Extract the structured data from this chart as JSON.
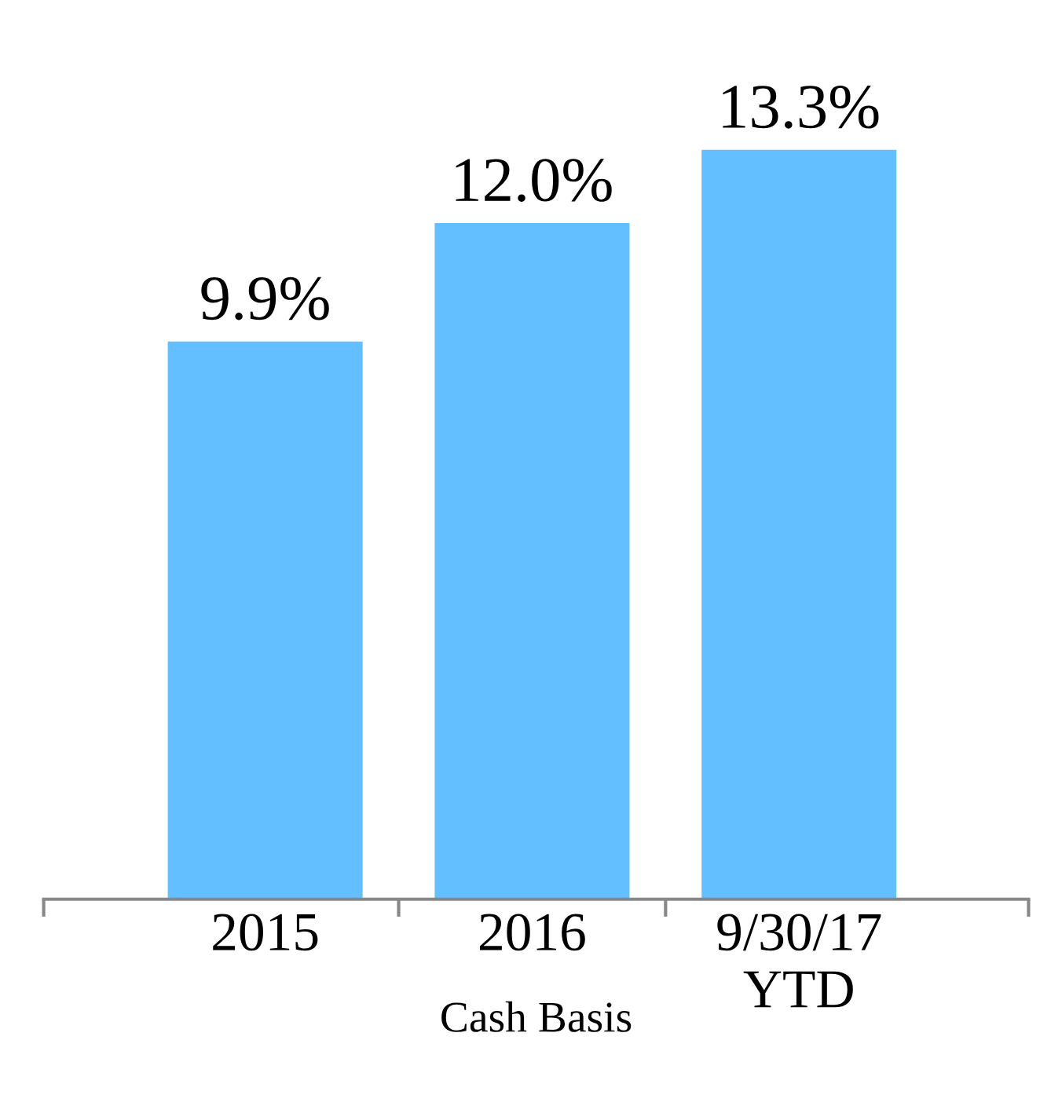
{
  "chart_data": {
    "type": "bar",
    "categories": [
      "2015",
      "2016",
      "9/30/17\nYTD"
    ],
    "values": [
      9.9,
      12.0,
      13.3
    ],
    "value_labels": [
      "9.9%",
      "12.0%",
      "13.3%"
    ],
    "color": "#63bfff",
    "xlabel": "Cash Basis",
    "tick_labels": "x"
  }
}
